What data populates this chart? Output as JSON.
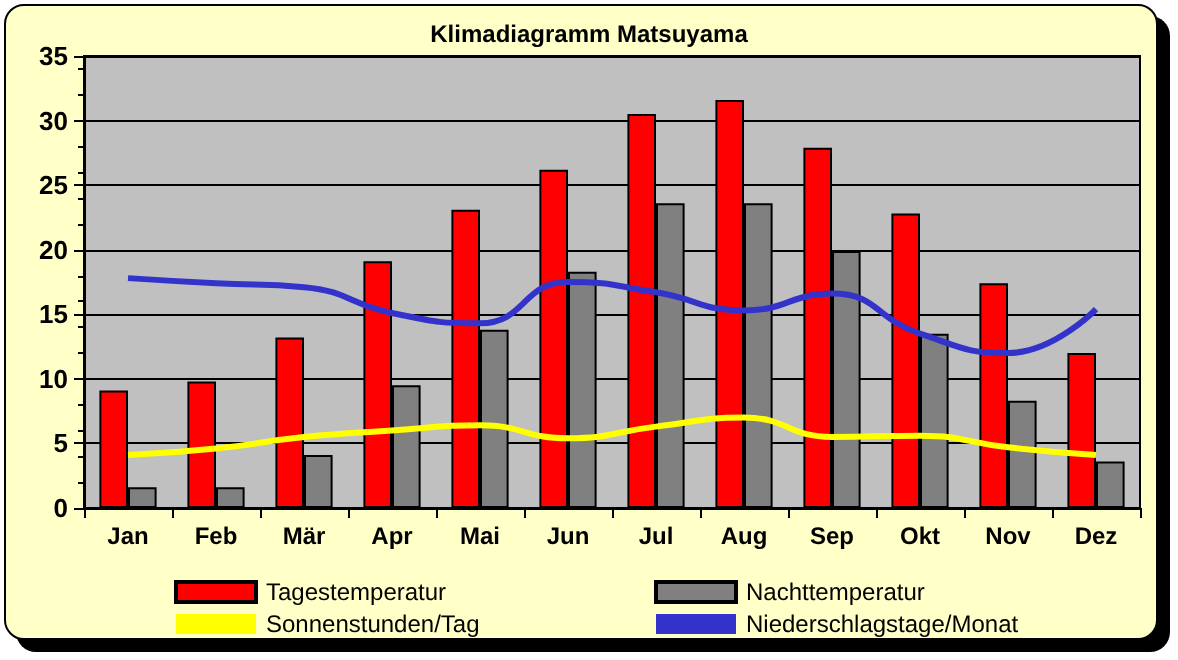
{
  "chart_data": {
    "type": "bar",
    "title": "Klimadiagramm Matsuyama",
    "categories": [
      "Jan",
      "Feb",
      "Mär",
      "Apr",
      "Mai",
      "Jun",
      "Jul",
      "Aug",
      "Sep",
      "Okt",
      "Nov",
      "Dez"
    ],
    "series": [
      {
        "name": "Tagestemperatur",
        "color": "#ff0000",
        "values": [
          9.1,
          9.8,
          13.2,
          19.1,
          23.1,
          26.2,
          30.5,
          31.6,
          27.9,
          22.8,
          17.4,
          12.0
        ]
      },
      {
        "name": "Nachttemperatur",
        "color": "#808080",
        "values": [
          1.6,
          1.6,
          4.1,
          9.5,
          13.8,
          18.3,
          23.6,
          23.6,
          19.9,
          13.5,
          8.3,
          3.6
        ]
      },
      {
        "name": "Sonnenstunden/Tag",
        "type": "line",
        "color": "#ffff00",
        "values": [
          4.1,
          4.6,
          5.5,
          6.0,
          6.4,
          5.4,
          6.3,
          7.0,
          5.5,
          5.6,
          4.7,
          4.1
        ]
      },
      {
        "name": "Niederschlagstage/Monat",
        "type": "line",
        "color": "#3333cc",
        "values": [
          17.8,
          17.4,
          17.1,
          15.1,
          14.3,
          17.5,
          16.7,
          15.3,
          16.6,
          13.5,
          12.0,
          15.4
        ]
      }
    ],
    "ylim": [
      0,
      35
    ],
    "yticks": [
      0,
      5,
      10,
      15,
      20,
      25,
      30,
      35
    ],
    "grid": "y",
    "legend": "bottom",
    "marker": "none",
    "line_style": "solid"
  }
}
